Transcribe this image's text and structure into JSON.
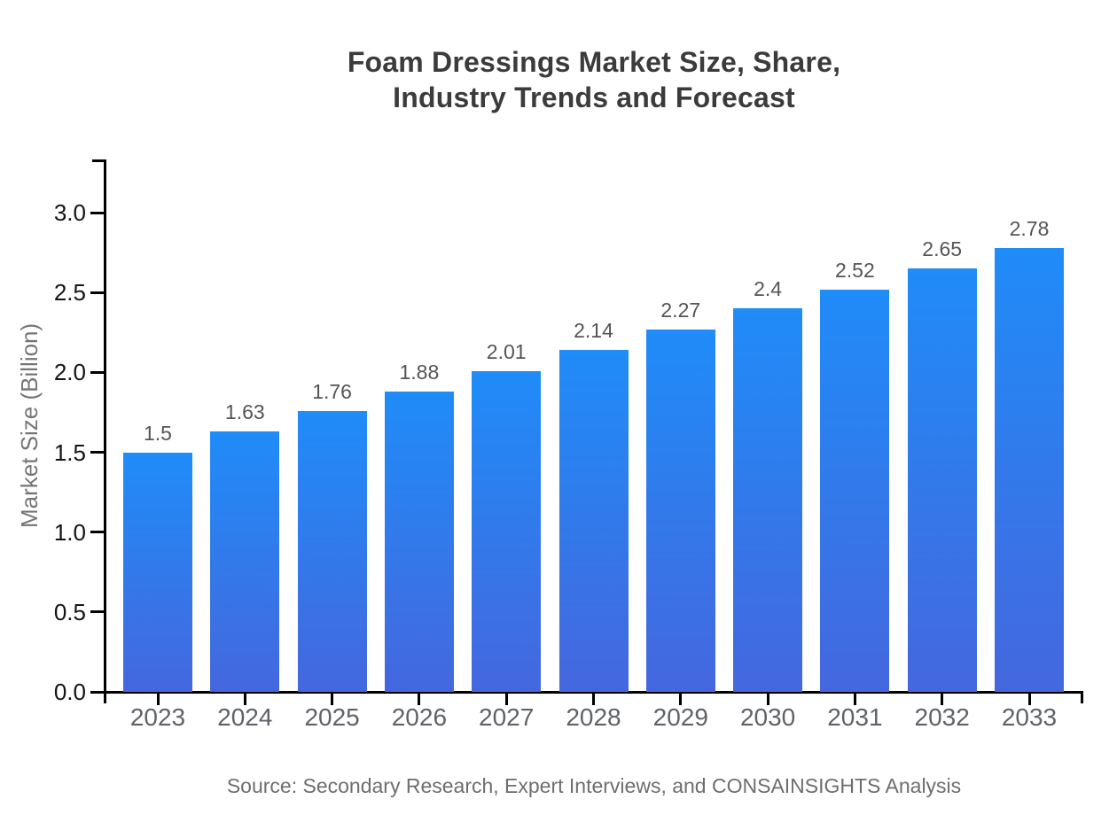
{
  "chart": {
    "title_line1": "Foam Dressings Market Size, Share,",
    "title_line2": "Industry Trends and Forecast",
    "y_axis_label": "Market Size (Billion)",
    "source": "Source: Secondary Research, Expert Interviews, and CONSAINSIGHTS Analysis"
  },
  "chart_data": {
    "type": "bar",
    "title": "Foam Dressings Market Size, Share, Industry Trends and Forecast",
    "xlabel": "",
    "ylabel": "Market Size (Billion)",
    "categories": [
      "2023",
      "2024",
      "2025",
      "2026",
      "2027",
      "2028",
      "2029",
      "2030",
      "2031",
      "2032",
      "2033"
    ],
    "values": [
      1.5,
      1.63,
      1.76,
      1.88,
      2.01,
      2.14,
      2.27,
      2.4,
      2.52,
      2.65,
      2.78
    ],
    "value_labels": [
      "1.5",
      "1.63",
      "1.76",
      "1.88",
      "2.01",
      "2.14",
      "2.27",
      "2.4",
      "2.52",
      "2.65",
      "2.78"
    ],
    "ylim": [
      0,
      3.33
    ],
    "ytick_labels": [
      "0.0",
      "0.5",
      "1.0",
      "1.5",
      "2.0",
      "2.5",
      "3.0"
    ],
    "ytick_values": [
      0,
      0.5,
      1,
      1.5,
      2,
      2.5,
      3
    ],
    "grid": false,
    "legend": "none",
    "bar_color_top": "#1f8cf8",
    "bar_color_bottom": "#4567de",
    "axis_color": "#000000",
    "source": "Source: Secondary Research, Expert Interviews, and CONSAINSIGHTS Analysis"
  }
}
